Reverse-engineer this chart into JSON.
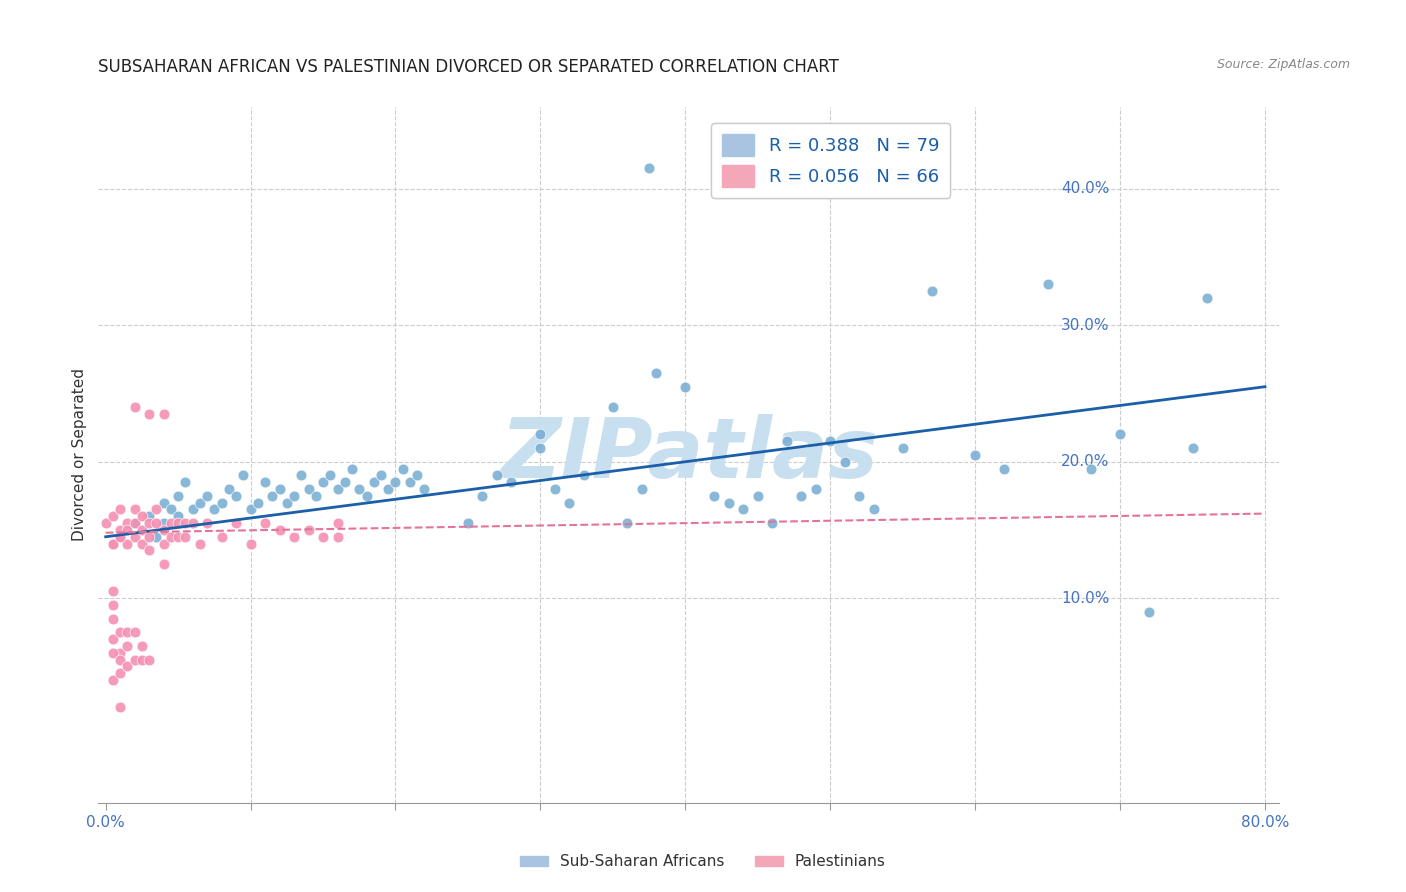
{
  "title": "SUBSAHARAN AFRICAN VS PALESTINIAN DIVORCED OR SEPARATED CORRELATION CHART",
  "source": "Source: ZipAtlas.com",
  "ylabel_label": "Divorced or Separated",
  "xlim": [
    -0.01,
    0.82
  ],
  "ylim": [
    -0.05,
    0.48
  ],
  "plot_xlim": [
    0.0,
    0.8
  ],
  "plot_ylim": [
    0.0,
    0.45
  ],
  "watermark": "ZIPatlas",
  "legend_labels_bottom": [
    "Sub-Saharan Africans",
    "Palestinians"
  ],
  "blue_scatter_color": "#7bafd4",
  "pink_scatter_color": "#f48fb1",
  "blue_line_color": "#1a5fa8",
  "pink_line_color": "#e57399",
  "blue_scatter": [
    [
      0.02,
      0.155
    ],
    [
      0.03,
      0.16
    ],
    [
      0.035,
      0.145
    ],
    [
      0.04,
      0.155
    ],
    [
      0.04,
      0.17
    ],
    [
      0.045,
      0.165
    ],
    [
      0.05,
      0.16
    ],
    [
      0.05,
      0.175
    ],
    [
      0.055,
      0.185
    ],
    [
      0.06,
      0.165
    ],
    [
      0.065,
      0.17
    ],
    [
      0.07,
      0.175
    ],
    [
      0.075,
      0.165
    ],
    [
      0.08,
      0.17
    ],
    [
      0.085,
      0.18
    ],
    [
      0.09,
      0.175
    ],
    [
      0.095,
      0.19
    ],
    [
      0.1,
      0.165
    ],
    [
      0.105,
      0.17
    ],
    [
      0.11,
      0.185
    ],
    [
      0.115,
      0.175
    ],
    [
      0.12,
      0.18
    ],
    [
      0.125,
      0.17
    ],
    [
      0.13,
      0.175
    ],
    [
      0.135,
      0.19
    ],
    [
      0.14,
      0.18
    ],
    [
      0.145,
      0.175
    ],
    [
      0.15,
      0.185
    ],
    [
      0.155,
      0.19
    ],
    [
      0.16,
      0.18
    ],
    [
      0.165,
      0.185
    ],
    [
      0.17,
      0.195
    ],
    [
      0.175,
      0.18
    ],
    [
      0.18,
      0.175
    ],
    [
      0.185,
      0.185
    ],
    [
      0.19,
      0.19
    ],
    [
      0.195,
      0.18
    ],
    [
      0.2,
      0.185
    ],
    [
      0.205,
      0.195
    ],
    [
      0.21,
      0.185
    ],
    [
      0.215,
      0.19
    ],
    [
      0.22,
      0.18
    ],
    [
      0.25,
      0.155
    ],
    [
      0.26,
      0.175
    ],
    [
      0.27,
      0.19
    ],
    [
      0.28,
      0.185
    ],
    [
      0.3,
      0.21
    ],
    [
      0.3,
      0.22
    ],
    [
      0.31,
      0.18
    ],
    [
      0.32,
      0.17
    ],
    [
      0.33,
      0.19
    ],
    [
      0.35,
      0.24
    ],
    [
      0.36,
      0.155
    ],
    [
      0.37,
      0.18
    ],
    [
      0.375,
      0.415
    ],
    [
      0.38,
      0.265
    ],
    [
      0.4,
      0.255
    ],
    [
      0.42,
      0.175
    ],
    [
      0.43,
      0.17
    ],
    [
      0.44,
      0.165
    ],
    [
      0.45,
      0.175
    ],
    [
      0.46,
      0.155
    ],
    [
      0.47,
      0.215
    ],
    [
      0.48,
      0.175
    ],
    [
      0.49,
      0.18
    ],
    [
      0.5,
      0.215
    ],
    [
      0.51,
      0.2
    ],
    [
      0.52,
      0.175
    ],
    [
      0.53,
      0.165
    ],
    [
      0.55,
      0.21
    ],
    [
      0.57,
      0.325
    ],
    [
      0.6,
      0.205
    ],
    [
      0.62,
      0.195
    ],
    [
      0.65,
      0.33
    ],
    [
      0.68,
      0.195
    ],
    [
      0.7,
      0.22
    ],
    [
      0.72,
      0.09
    ],
    [
      0.75,
      0.21
    ],
    [
      0.76,
      0.32
    ]
  ],
  "pink_scatter": [
    [
      0.0,
      0.155
    ],
    [
      0.005,
      0.16
    ],
    [
      0.005,
      0.14
    ],
    [
      0.01,
      0.15
    ],
    [
      0.01,
      0.165
    ],
    [
      0.01,
      0.145
    ],
    [
      0.015,
      0.155
    ],
    [
      0.015,
      0.15
    ],
    [
      0.015,
      0.14
    ],
    [
      0.02,
      0.165
    ],
    [
      0.02,
      0.155
    ],
    [
      0.02,
      0.145
    ],
    [
      0.025,
      0.16
    ],
    [
      0.025,
      0.15
    ],
    [
      0.025,
      0.14
    ],
    [
      0.03,
      0.155
    ],
    [
      0.03,
      0.145
    ],
    [
      0.03,
      0.135
    ],
    [
      0.035,
      0.165
    ],
    [
      0.035,
      0.155
    ],
    [
      0.04,
      0.15
    ],
    [
      0.04,
      0.14
    ],
    [
      0.04,
      0.125
    ],
    [
      0.045,
      0.155
    ],
    [
      0.045,
      0.145
    ],
    [
      0.05,
      0.155
    ],
    [
      0.05,
      0.145
    ],
    [
      0.055,
      0.155
    ],
    [
      0.055,
      0.145
    ],
    [
      0.06,
      0.155
    ],
    [
      0.065,
      0.14
    ],
    [
      0.07,
      0.155
    ],
    [
      0.08,
      0.145
    ],
    [
      0.09,
      0.155
    ],
    [
      0.1,
      0.14
    ],
    [
      0.11,
      0.155
    ],
    [
      0.12,
      0.15
    ],
    [
      0.13,
      0.145
    ],
    [
      0.14,
      0.15
    ],
    [
      0.15,
      0.145
    ],
    [
      0.16,
      0.145
    ],
    [
      0.16,
      0.155
    ],
    [
      0.02,
      0.24
    ],
    [
      0.03,
      0.235
    ],
    [
      0.04,
      0.235
    ],
    [
      0.01,
      0.06
    ],
    [
      0.005,
      0.085
    ],
    [
      0.005,
      0.095
    ],
    [
      0.005,
      0.105
    ],
    [
      0.005,
      0.07
    ],
    [
      0.005,
      0.06
    ],
    [
      0.005,
      0.04
    ],
    [
      0.01,
      0.075
    ],
    [
      0.01,
      0.055
    ],
    [
      0.01,
      0.045
    ],
    [
      0.015,
      0.075
    ],
    [
      0.015,
      0.065
    ],
    [
      0.015,
      0.05
    ],
    [
      0.02,
      0.075
    ],
    [
      0.02,
      0.055
    ],
    [
      0.025,
      0.065
    ],
    [
      0.025,
      0.055
    ],
    [
      0.03,
      0.055
    ],
    [
      0.005,
      0.14
    ],
    [
      0.01,
      0.145
    ],
    [
      0.01,
      0.02
    ]
  ],
  "blue_line_x": [
    0.0,
    0.8
  ],
  "blue_line_y": [
    0.145,
    0.255
  ],
  "pink_line_x": [
    0.0,
    0.8
  ],
  "pink_line_y": [
    0.148,
    0.162
  ],
  "right_ytick_positions": [
    0.1,
    0.2,
    0.3,
    0.4
  ],
  "right_ytick_labels": [
    "10.0%",
    "20.0%",
    "30.0%",
    "40.0%"
  ],
  "x_tick_positions": [
    0.0,
    0.1,
    0.2,
    0.3,
    0.4,
    0.5,
    0.6,
    0.7,
    0.8
  ],
  "grid_color": "#cccccc",
  "bg_color": "#ffffff",
  "title_fontsize": 12,
  "axis_tick_fontsize": 11,
  "watermark_color": "#c8dff0",
  "watermark_fontsize": 60
}
